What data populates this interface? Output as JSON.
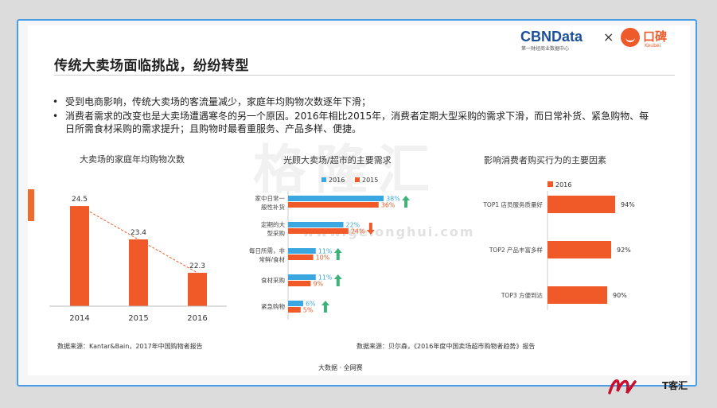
{
  "slide": {
    "title": "传统大卖场面临挑战，纷纷转型",
    "bullets": [
      "受到电商影响，传统大卖场的客流量减少，家庭年均购物次数逐年下滑；",
      "消费者需求的改变也是大卖场遭遇寒冬的另一个原因。2016年相比2015年，消费者定期大型采购的需求下滑，而日常补货、紧急购物、每日所需食材采购的需求提升；且购物时最看重服务、产品多样、便捷。"
    ],
    "footer": "大数据 · 全网赛",
    "logos": {
      "cbn": "CBNData",
      "cbn_sub": "第一财经商业数据中心",
      "x": "×",
      "koubei": "口碑",
      "koubei_sub": "Koubei"
    },
    "watermark": {
      "main": "格隆汇",
      "url": "www.gelonghui.com"
    },
    "brand_text": "T客汇"
  },
  "chart_data": [
    {
      "type": "bar",
      "title": "大卖场的家庭年均购物次数",
      "categories": [
        "2014",
        "2015",
        "2016"
      ],
      "values": [
        24.5,
        23.4,
        22.3
      ],
      "ylim": [
        21.2,
        25.0
      ],
      "trendline": true,
      "color": "#f05a28",
      "source": "数据来源：Kantar&Bain，2017年中国购物者报告"
    },
    {
      "type": "bar",
      "orientation": "horizontal",
      "title": "光顾大卖场/超市的主要需求",
      "categories": [
        "家中日常一般性补货",
        "定期的大型采购",
        "每日所需，非常鲜/食材",
        "食材采购",
        "紧急购物"
      ],
      "series": [
        {
          "name": "2016",
          "color": "#3aa7e0",
          "values": [
            38,
            22,
            11,
            11,
            6
          ],
          "labels": [
            "38%",
            "22%",
            "11%",
            "11%",
            "6%"
          ]
        },
        {
          "name": "2015",
          "color": "#f05a28",
          "values": [
            36,
            24,
            10,
            9,
            5
          ],
          "labels": [
            "36%",
            "24%",
            "10%",
            "9%",
            "5%"
          ]
        }
      ],
      "trend": [
        "up",
        "down",
        "up",
        "up",
        "up"
      ],
      "xlim": [
        0,
        50
      ],
      "source": "数据来源：贝尔森，《2016年度中国卖场超市购物者趋势》报告"
    },
    {
      "type": "bar",
      "orientation": "horizontal",
      "title": "影响消费者购买行为的主要因素",
      "categories": [
        "TOP1 店员服务质量好",
        "TOP2 产品丰富多样",
        "TOP3 方便到达"
      ],
      "series": [
        {
          "name": "2016",
          "color": "#f05a28",
          "values": [
            94,
            92,
            90
          ],
          "labels": [
            "94%",
            "92%",
            "90%"
          ]
        }
      ],
      "xlim": [
        60,
        100
      ]
    }
  ]
}
